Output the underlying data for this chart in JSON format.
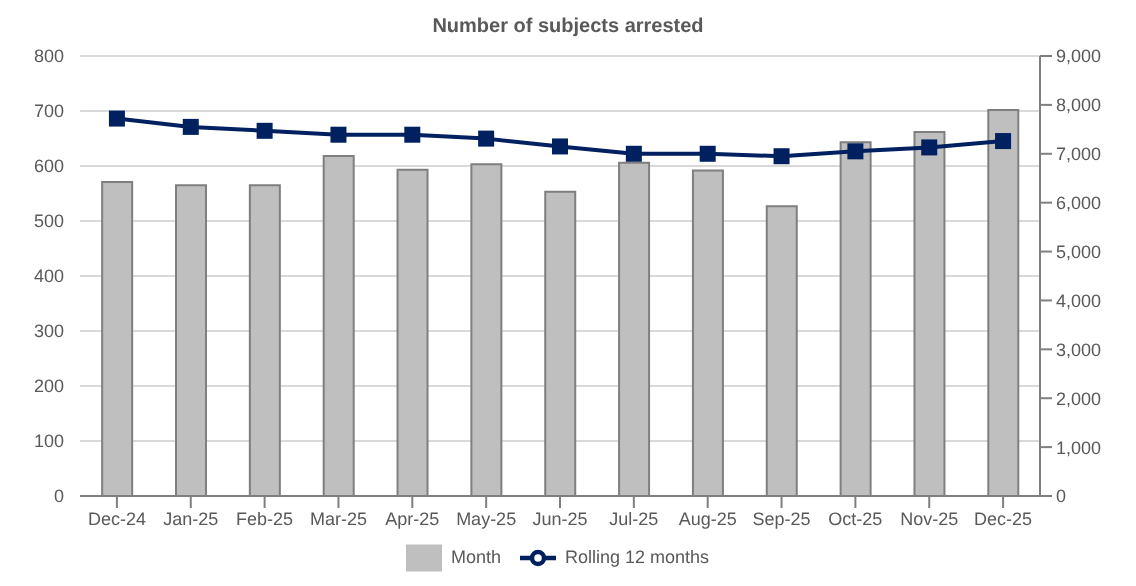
{
  "chart_data": {
    "type": "bar",
    "title": "Number of subjects arrested",
    "categories": [
      "Dec-24",
      "Jan-25",
      "Feb-25",
      "Mar-25",
      "Apr-25",
      "May-25",
      "Jun-25",
      "Jul-25",
      "Aug-25",
      "Sep-25",
      "Oct-25",
      "Nov-25",
      "Dec-25"
    ],
    "series": [
      {
        "name": "Month",
        "color": "#bfbfbf",
        "values": [
          571,
          565,
          565,
          618,
          593,
          603,
          553,
          606,
          592,
          527,
          643,
          662,
          702
        ]
      },
      {
        "name": "Rolling 12 months",
        "type": "line",
        "axis": "y2",
        "color": "#002060",
        "marker": "square",
        "values": [
          7720,
          7550,
          7470,
          7390,
          7390,
          7310,
          7150,
          7000,
          7000,
          6950,
          7050,
          7130,
          7260
        ]
      }
    ],
    "ylim": [
      0,
      800
    ],
    "yticks": [
      0,
      100,
      200,
      300,
      400,
      500,
      600,
      700,
      800
    ],
    "y2lim": [
      0,
      9000
    ],
    "y2ticks": [
      {
        "value": 0,
        "label": "0"
      },
      {
        "value": 1000,
        "label": "1,000"
      },
      {
        "value": 2000,
        "label": "2,000"
      },
      {
        "value": 3000,
        "label": "3,000"
      },
      {
        "value": 4000,
        "label": "4,000"
      },
      {
        "value": 5000,
        "label": "5,000"
      },
      {
        "value": 6000,
        "label": "6,000"
      },
      {
        "value": 7000,
        "label": "7,000"
      },
      {
        "value": 8000,
        "label": "8,000"
      },
      {
        "value": 9000,
        "label": "9,000"
      }
    ],
    "grid": "y",
    "legend": "bottom"
  }
}
